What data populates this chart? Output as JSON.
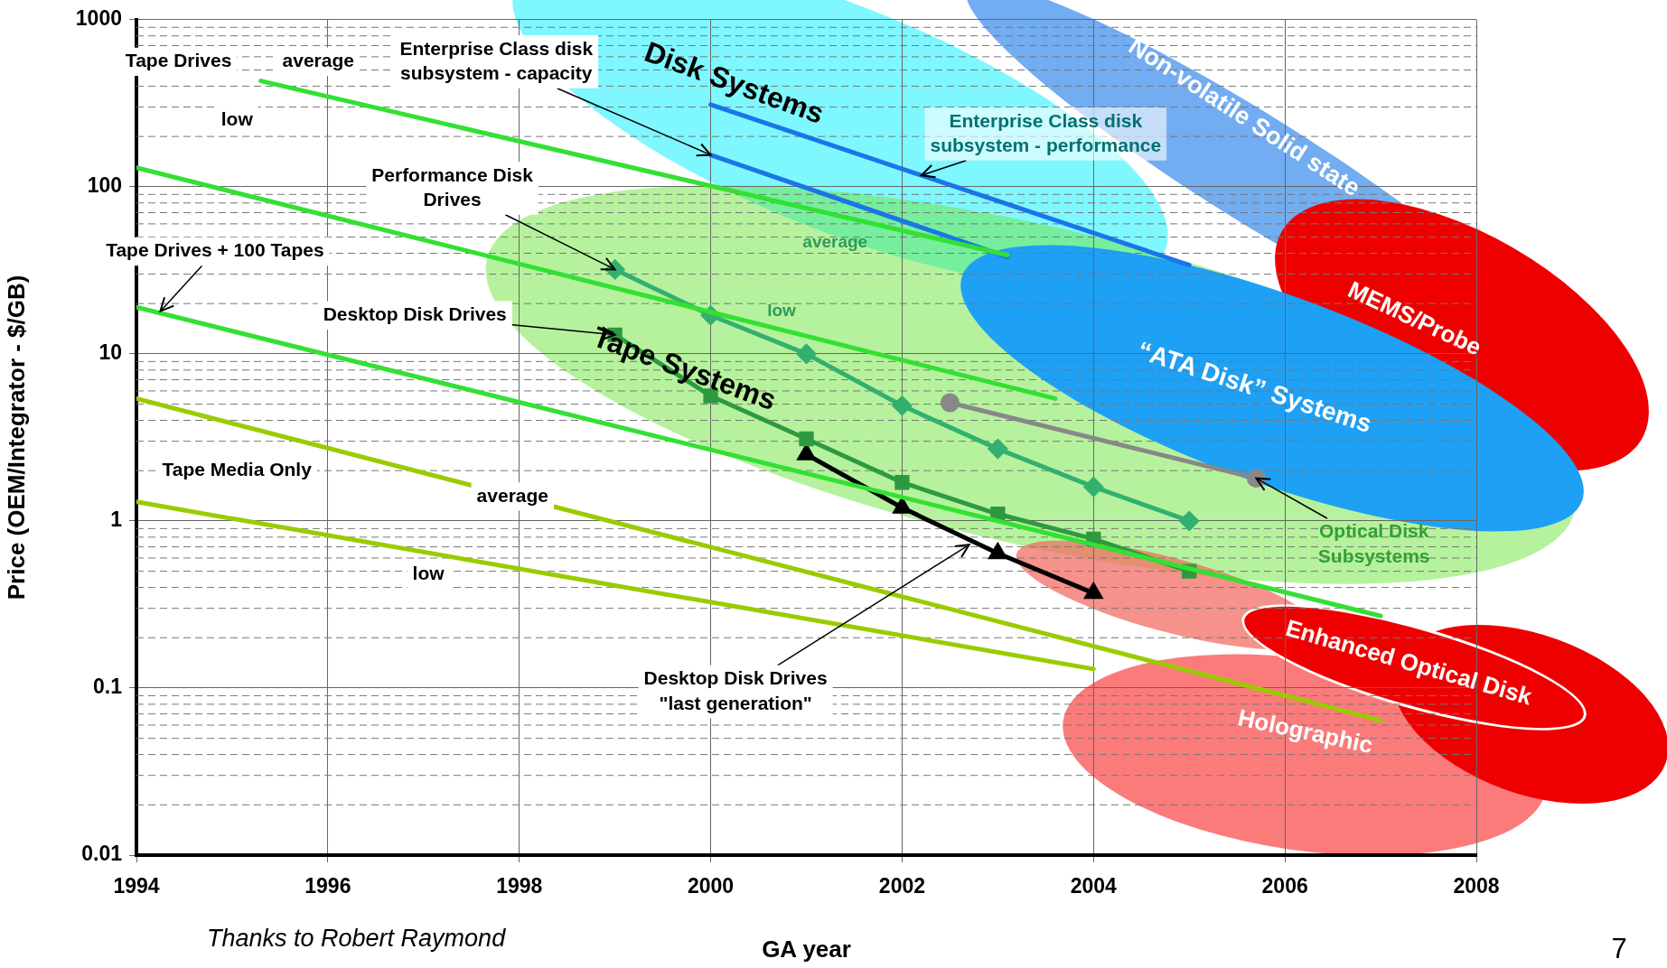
{
  "chart_data": {
    "type": "line",
    "xlabel": "GA year",
    "ylabel": "Price (OEM/Integrator - $/GB)",
    "xlim": [
      1994,
      2008
    ],
    "xticks": [
      1994,
      1996,
      1998,
      2000,
      2002,
      2004,
      2006,
      2008
    ],
    "ylim": [
      0.01,
      1000
    ],
    "yticks": [
      0.01,
      0.1,
      1,
      10,
      100,
      1000
    ],
    "log": "y",
    "grid": true,
    "legend": false,
    "series": [
      {
        "color": "#33e033",
        "marker": "none",
        "x": [
          1995.3,
          2003.1
        ],
        "values": [
          430,
          39
        ]
      },
      {
        "color": "#33e033",
        "marker": "none",
        "x": [
          1994,
          2003.6
        ],
        "values": [
          130,
          5.4
        ]
      },
      {
        "color": "#33e033",
        "marker": "none",
        "x": [
          1994,
          2007
        ],
        "values": [
          19,
          0.27
        ]
      },
      {
        "color": "#99cc00",
        "marker": "none",
        "x": [
          1994,
          2007
        ],
        "values": [
          5.4,
          0.064
        ]
      },
      {
        "color": "#99cc00",
        "marker": "none",
        "x": [
          1994,
          2004
        ],
        "values": [
          1.3,
          0.13
        ]
      },
      {
        "color": "#1a75e8",
        "marker": "none",
        "x": [
          2000,
          2003.1
        ],
        "values": [
          155,
          38
        ]
      },
      {
        "color": "#1a75e8",
        "marker": "none",
        "x": [
          2000,
          2005
        ],
        "values": [
          310,
          34
        ]
      },
      {
        "color": "#33b070",
        "marker": "diamond",
        "x": [
          1999,
          2000,
          2001,
          2002,
          2003,
          2004,
          2005
        ],
        "values": [
          32,
          17,
          10,
          4.9,
          2.7,
          1.6,
          1.0
        ]
      },
      {
        "color": "#2e9a40",
        "marker": "square",
        "x": [
          1999,
          2000,
          2001,
          2002,
          2003,
          2004,
          2005
        ],
        "values": [
          13,
          5.6,
          3.1,
          1.7,
          1.1,
          0.78,
          0.5
        ]
      },
      {
        "color": "#000000",
        "marker": "triangle",
        "x": [
          2001,
          2002,
          2003,
          2004
        ],
        "values": [
          2.5,
          1.2,
          0.64,
          0.37
        ]
      },
      {
        "color": "#888888",
        "marker": "circle",
        "x": [
          2002.5,
          2005.7
        ],
        "values": [
          5.1,
          1.8
        ]
      }
    ],
    "annotations": [
      "Tape Drives",
      "average",
      "low",
      {
        "text": "Enterprise Class disk subsystem - capacity",
        "x": 2000,
        "y": 155
      },
      "Disk Systems",
      "Non-volatile Solid state",
      {
        "text": "Enterprise Class disk subsystem - performance",
        "x": 2002.2,
        "y": 117
      },
      {
        "text": "Performance Disk Drives",
        "x": 1999,
        "y": 32
      },
      "average",
      "low",
      {
        "text": "Tape Drives + 100 Tapes",
        "x": 1994.25,
        "y": 18
      },
      {
        "text": "Desktop Disk Drives",
        "x": 1999,
        "y": 13
      },
      "Tape Systems",
      "“ATA Disk” Systems",
      "MEMS/Probe",
      "Tape Media Only",
      "average",
      "low",
      {
        "text": "Optical Disk Subsystems",
        "x": 2005.7,
        "y": 1.8
      },
      "Enhanced Optical Disk",
      "Holographic",
      {
        "text": "Desktop Disk Drives \"last generation\"",
        "x": 2002.7,
        "y": 0.72
      },
      "Thanks to Robert Raymond",
      "7"
    ]
  }
}
